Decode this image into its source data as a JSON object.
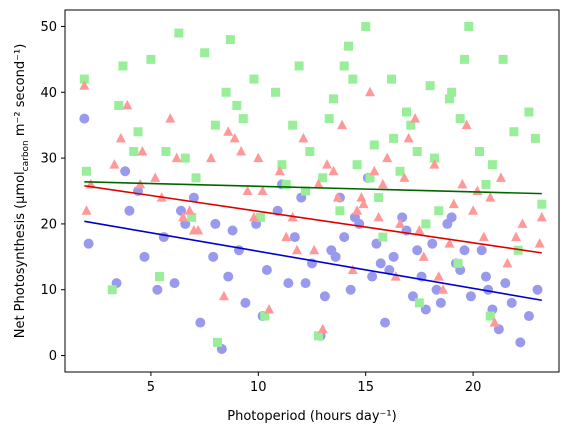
{
  "chart_data": {
    "type": "scatter",
    "title": "",
    "xlabel": "Photoperiod (hours day⁻¹)",
    "ylabel": "Net Photosynthesis (µmol",
    "ylabel_sub": "carbon",
    "ylabel_tail": " m⁻² second⁻¹)",
    "xlim": [
      1.0,
      24.0
    ],
    "ylim": [
      -2.5,
      52.5
    ],
    "xticks": [
      5,
      10,
      15,
      20
    ],
    "yticks": [
      0,
      10,
      20,
      30,
      40,
      50
    ],
    "grid": false,
    "legend": "none",
    "series": [
      {
        "marker": "circle",
        "color": "#9999ee",
        "x": [
          1.9,
          2.1,
          3.4,
          4.0,
          4.7,
          5.3,
          6.1,
          6.6,
          7.3,
          7.9,
          8.3,
          8.8,
          9.4,
          9.9,
          10.4,
          10.9,
          11.4,
          12.0,
          12.5,
          12.9,
          13.4,
          13.8,
          14.3,
          14.7,
          15.1,
          15.5,
          15.9,
          16.3,
          16.7,
          17.2,
          17.6,
          18.1,
          18.5,
          19.0,
          19.4,
          19.9,
          20.4,
          20.9,
          21.5,
          22.2,
          23.0,
          3.8,
          5.6,
          7.0,
          8.6,
          10.2,
          11.7,
          13.1,
          14.5,
          15.7,
          16.9,
          18.3,
          19.6,
          20.6,
          21.8,
          6.4,
          9.1,
          12.2,
          14.0,
          16.1,
          17.8,
          19.2,
          20.7,
          22.6,
          4.4,
          8.0,
          11.1,
          13.6,
          15.3,
          17.4,
          18.8,
          21.2
        ],
        "y": [
          36,
          17,
          11,
          22,
          15,
          10,
          11,
          20,
          5,
          15,
          1,
          19,
          8,
          20,
          13,
          22,
          11,
          24,
          14,
          3,
          16,
          24,
          10,
          20,
          27,
          17,
          5,
          15,
          21,
          9,
          12,
          17,
          8,
          21,
          13,
          9,
          16,
          7,
          11,
          2,
          10,
          28,
          18,
          24,
          12,
          6,
          18,
          9,
          21,
          14,
          19,
          10,
          16,
          12,
          8,
          22,
          16,
          11,
          18,
          13,
          7,
          14,
          10,
          6,
          25,
          20,
          26,
          15,
          12,
          16,
          20,
          4
        ]
      },
      {
        "marker": "triangle",
        "color": "#ff9999",
        "x": [
          1.9,
          2.2,
          3.3,
          3.9,
          4.6,
          5.2,
          5.9,
          6.5,
          7.2,
          7.8,
          8.4,
          8.9,
          9.5,
          10.0,
          10.5,
          11.0,
          11.6,
          12.1,
          12.6,
          13.0,
          13.5,
          13.9,
          14.4,
          14.8,
          15.2,
          15.6,
          16.0,
          16.4,
          16.8,
          17.3,
          17.7,
          18.2,
          18.6,
          19.1,
          19.5,
          20.0,
          20.5,
          21.0,
          21.6,
          22.3,
          23.1,
          2.0,
          3.6,
          5.5,
          7.0,
          8.6,
          10.2,
          11.8,
          13.2,
          14.6,
          15.8,
          17.0,
          18.4,
          19.7,
          20.8,
          22.0,
          4.5,
          6.8,
          9.2,
          11.3,
          13.7,
          15.4,
          16.6,
          18.9,
          21.3,
          23.2,
          6.2,
          9.8,
          12.8,
          14.9,
          17.5,
          20.2
        ],
        "y": [
          41,
          26,
          29,
          38,
          31,
          27,
          36,
          21,
          19,
          30,
          9,
          33,
          25,
          30,
          7,
          28,
          21,
          33,
          16,
          4,
          28,
          35,
          13,
          24,
          40,
          21,
          30,
          12,
          27,
          36,
          15,
          29,
          10,
          23,
          26,
          22,
          18,
          5,
          14,
          20,
          17,
          22,
          33,
          24,
          19,
          34,
          25,
          16,
          29,
          22,
          26,
          33,
          12,
          35,
          24,
          18,
          26,
          22,
          31,
          18,
          24,
          28,
          20,
          17,
          27,
          21,
          30,
          21,
          26,
          23,
          19,
          25
        ]
      },
      {
        "marker": "square",
        "color": "#99ee99",
        "x": [
          1.9,
          2.0,
          3.2,
          3.7,
          4.4,
          5.0,
          5.7,
          6.3,
          6.9,
          7.5,
          8.1,
          8.7,
          9.3,
          9.8,
          10.3,
          10.8,
          11.3,
          11.9,
          12.4,
          12.8,
          13.3,
          13.8,
          14.2,
          14.6,
          15.0,
          15.4,
          15.8,
          16.2,
          16.6,
          17.1,
          17.5,
          18.0,
          18.4,
          18.9,
          19.3,
          19.8,
          20.3,
          20.8,
          21.4,
          22.1,
          22.9,
          23.2,
          3.5,
          5.4,
          7.1,
          8.5,
          10.1,
          11.6,
          13.0,
          14.4,
          15.6,
          16.9,
          18.2,
          19.6,
          20.6,
          21.9,
          6.6,
          9.0,
          12.2,
          14.0,
          16.3,
          17.8,
          19.0,
          20.9,
          22.6,
          4.2,
          8.0,
          11.1,
          13.5,
          15.2,
          17.4,
          19.4
        ],
        "y": [
          42,
          28,
          10,
          44,
          34,
          45,
          31,
          49,
          21,
          46,
          2,
          48,
          36,
          42,
          6,
          40,
          26,
          44,
          31,
          3,
          36,
          22,
          47,
          29,
          50,
          32,
          18,
          42,
          28,
          35,
          8,
          41,
          22,
          39,
          14,
          50,
          31,
          6,
          45,
          16,
          33,
          23,
          38,
          12,
          27,
          40,
          21,
          35,
          27,
          42,
          24,
          37,
          30,
          45,
          26,
          34,
          30,
          38,
          25,
          44,
          33,
          20,
          40,
          29,
          37,
          31,
          35,
          29,
          39,
          27,
          31,
          36
        ]
      }
    ],
    "trend_lines": [
      {
        "color": "#0000cc",
        "x": [
          1.9,
          23.2
        ],
        "y": [
          20.4,
          8.4
        ]
      },
      {
        "color": "#dd0000",
        "x": [
          1.9,
          23.2
        ],
        "y": [
          25.8,
          15.6
        ]
      },
      {
        "color": "#006600",
        "x": [
          1.9,
          23.2
        ],
        "y": [
          26.4,
          24.6
        ]
      }
    ]
  }
}
